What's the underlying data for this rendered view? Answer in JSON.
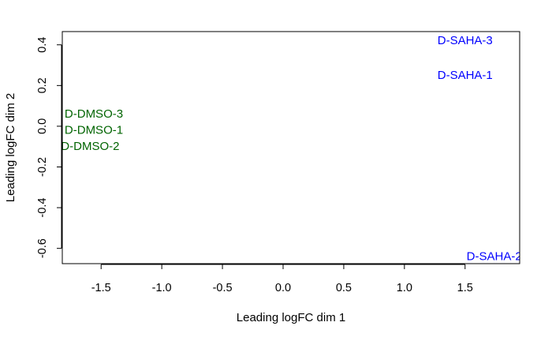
{
  "chart_data": {
    "type": "scatter",
    "title": "",
    "xlabel": "Leading logFC dim 1",
    "ylabel": "Leading logFC dim 2",
    "xlim": [
      -1.82,
      1.95
    ],
    "ylim": [
      -0.675,
      0.465
    ],
    "x_ticks": [
      -1.5,
      -1.0,
      -0.5,
      0.0,
      0.5,
      1.0,
      1.5
    ],
    "x_tick_labels": [
      "-1.5",
      "-1.0",
      "-0.5",
      "0.0",
      "0.5",
      "1.0",
      "1.5"
    ],
    "y_ticks": [
      -0.6,
      -0.4,
      -0.2,
      0.0,
      0.2,
      0.4
    ],
    "y_tick_labels": [
      "-0.6",
      "-0.4",
      "-0.2",
      "0.0",
      "0.2",
      "0.4"
    ],
    "grid": false,
    "legend": "none",
    "point_labels_as_markers": true,
    "points": [
      {
        "label": "D-DMSO-3",
        "x": -1.56,
        "y": 0.06,
        "color": "#006400"
      },
      {
        "label": "D-DMSO-1",
        "x": -1.56,
        "y": -0.02,
        "color": "#006400"
      },
      {
        "label": "D-DMSO-2",
        "x": -1.59,
        "y": -0.1,
        "color": "#006400"
      },
      {
        "label": "D-SAHA-3",
        "x": 1.5,
        "y": 0.42,
        "color": "#0000ff"
      },
      {
        "label": "D-SAHA-1",
        "x": 1.5,
        "y": 0.25,
        "color": "#0000ff"
      },
      {
        "label": "D-SAHA-2",
        "x": 1.74,
        "y": -0.64,
        "color": "#0000ff"
      }
    ]
  }
}
